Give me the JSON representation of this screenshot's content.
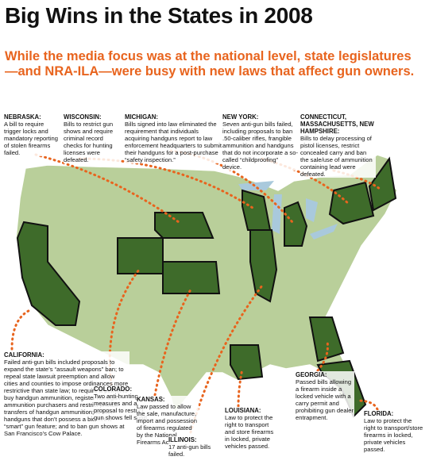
{
  "title": "Big Wins in the States in 2008",
  "subtitle": "While the media focus was at the national level, state legislatures—and NRA-ILA—were busy with new laws that affect gun owners.",
  "annotations": [
    {
      "state": "NEBRASKA:",
      "text": "A bill to require trigger locks and mandatory reporting of stolen firearms failed."
    },
    {
      "state": "WISCONSIN:",
      "text": "Bills to restrict gun shows and require criminal record checks for hunting licenses were defeated."
    },
    {
      "state": "MICHIGAN:",
      "text": "Bills signed into law eliminated the requirement that individuals acquiring handguns report to law enforcement headquarters to submit their handguns for a post-purchase “safety inspection.”"
    },
    {
      "state": "NEW YORK:",
      "text": "Seven anti-gun bills failed, including proposals to ban .50-caliber rifles, frangible ammunition and handguns that do not incorporate a so-called “childproofing” device."
    },
    {
      "state": "CONNECTICUT, MASSACHUSETTS, NEW HAMPSHIRE:",
      "text": "Bills to delay processing of pistol licenses, restrict concealed carry and ban the sale/use of ammunition containing lead were defeated."
    },
    {
      "state": "CALIFORNIA:",
      "text": "Failed anti-gun bills included proposals to expand the state’s “assault weapons” ban; to repeal state lawsuit preemption and allow cities and counties to impose ordinances more restrictive than state law; to require a permit to buy handgun ammunition, register handgun ammunition purchasers and restrict private transfers of handgun ammunition; to ban handguns that don’t possess a biometric “smart” gun feature; and to ban gun shows at San Francisco’s Cow Palace."
    },
    {
      "state": "COLORADO:",
      "text": "Two anti-hunting measures and a proposal to restrict gun shows fell short."
    },
    {
      "state": "KANSAS:",
      "text": "Law passed to allow the sale, manufacture, import and possession of firearms regulated by the National Firearms Act."
    },
    {
      "state": "ILLINOIS:",
      "text": "17 anti-gun bills failed."
    },
    {
      "state": "LOUISIANA:",
      "text": "Law to protect the right to transport and store firearms in locked, private vehicles passed."
    },
    {
      "state": "GEORGIA:",
      "text": "Passed bills allowing a firearm inside a locked vehicle with a carry permit and prohibiting gun dealer entrapment."
    },
    {
      "state": "FLORIDA:",
      "text": "Law to protect the right to transport/store firearms in locked, private vehicles passed."
    }
  ]
}
